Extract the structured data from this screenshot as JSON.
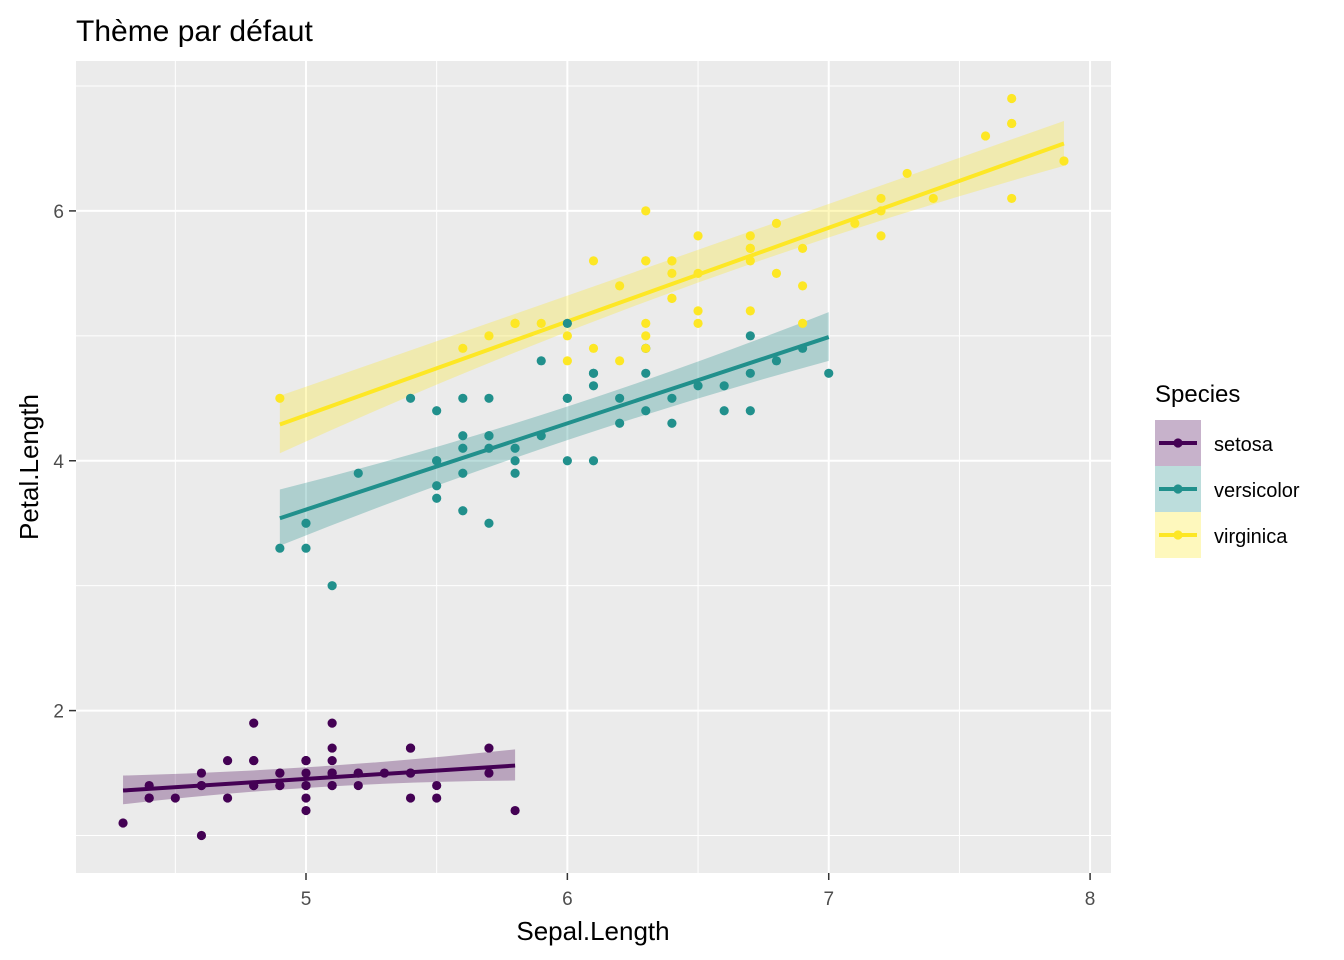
{
  "chart_data": {
    "type": "scatter",
    "title": "Thème par défaut",
    "xlabel": "Sepal.Length",
    "ylabel": "Petal.Length",
    "xlim": [
      4.12,
      8.08
    ],
    "ylim": [
      0.7,
      7.2
    ],
    "x_ticks": [
      5,
      6,
      7,
      8
    ],
    "y_ticks": [
      2,
      4,
      6
    ],
    "x_tick_labels": [
      "5",
      "6",
      "7",
      "8"
    ],
    "y_tick_labels": [
      "2",
      "4",
      "6"
    ],
    "grid": true,
    "background": "#ebebeb",
    "legend": {
      "title": "Species",
      "position": "right"
    },
    "series": [
      {
        "name": "setosa",
        "color": "#440154",
        "fit": {
          "x_range": [
            4.3,
            5.8
          ],
          "y_start": 1.36,
          "y_end": 1.56,
          "band_start": [
            1.25,
            1.48
          ],
          "band_end": [
            1.44,
            1.69
          ],
          "band_mid": [
            1.43,
            1.52
          ]
        },
        "points": [
          [
            5.1,
            1.4
          ],
          [
            4.9,
            1.4
          ],
          [
            4.7,
            1.3
          ],
          [
            4.6,
            1.5
          ],
          [
            5.0,
            1.4
          ],
          [
            5.4,
            1.7
          ],
          [
            4.6,
            1.4
          ],
          [
            5.0,
            1.5
          ],
          [
            4.4,
            1.4
          ],
          [
            4.9,
            1.5
          ],
          [
            5.4,
            1.5
          ],
          [
            4.8,
            1.6
          ],
          [
            4.8,
            1.4
          ],
          [
            4.3,
            1.1
          ],
          [
            5.8,
            1.2
          ],
          [
            5.7,
            1.5
          ],
          [
            5.4,
            1.3
          ],
          [
            5.1,
            1.4
          ],
          [
            5.7,
            1.7
          ],
          [
            5.1,
            1.5
          ],
          [
            5.4,
            1.7
          ],
          [
            5.1,
            1.5
          ],
          [
            4.6,
            1.0
          ],
          [
            5.1,
            1.7
          ],
          [
            4.8,
            1.9
          ],
          [
            5.0,
            1.6
          ],
          [
            5.0,
            1.6
          ],
          [
            5.2,
            1.5
          ],
          [
            5.2,
            1.4
          ],
          [
            4.7,
            1.6
          ],
          [
            4.8,
            1.6
          ],
          [
            5.4,
            1.5
          ],
          [
            5.2,
            1.5
          ],
          [
            5.5,
            1.4
          ],
          [
            4.9,
            1.5
          ],
          [
            5.0,
            1.2
          ],
          [
            5.5,
            1.3
          ],
          [
            4.9,
            1.4
          ],
          [
            4.4,
            1.3
          ],
          [
            5.1,
            1.5
          ],
          [
            5.0,
            1.3
          ],
          [
            4.5,
            1.3
          ],
          [
            4.4,
            1.3
          ],
          [
            5.0,
            1.6
          ],
          [
            5.1,
            1.9
          ],
          [
            4.8,
            1.4
          ],
          [
            5.1,
            1.6
          ],
          [
            4.6,
            1.4
          ],
          [
            5.3,
            1.5
          ],
          [
            5.0,
            1.4
          ]
        ]
      },
      {
        "name": "versicolor",
        "color": "#21908c",
        "fit": {
          "x_range": [
            4.9,
            7.0
          ],
          "y_start": 3.54,
          "y_end": 4.99,
          "band_start": [
            3.32,
            3.77
          ],
          "band_end": [
            4.8,
            5.19
          ],
          "band_mid": [
            4.2,
            4.32
          ]
        },
        "points": [
          [
            7.0,
            4.7
          ],
          [
            6.4,
            4.5
          ],
          [
            6.9,
            4.9
          ],
          [
            5.5,
            4.0
          ],
          [
            6.5,
            4.6
          ],
          [
            5.7,
            4.5
          ],
          [
            6.3,
            4.7
          ],
          [
            4.9,
            3.3
          ],
          [
            6.6,
            4.6
          ],
          [
            5.2,
            3.9
          ],
          [
            5.0,
            3.5
          ],
          [
            5.9,
            4.2
          ],
          [
            6.0,
            4.0
          ],
          [
            6.1,
            4.7
          ],
          [
            5.6,
            3.6
          ],
          [
            6.7,
            4.4
          ],
          [
            5.6,
            4.5
          ],
          [
            5.8,
            4.1
          ],
          [
            6.2,
            4.5
          ],
          [
            5.6,
            3.9
          ],
          [
            5.9,
            4.8
          ],
          [
            6.1,
            4.0
          ],
          [
            6.3,
            4.9
          ],
          [
            6.1,
            4.7
          ],
          [
            6.4,
            4.3
          ],
          [
            6.6,
            4.4
          ],
          [
            6.8,
            4.8
          ],
          [
            6.7,
            5.0
          ],
          [
            6.0,
            4.5
          ],
          [
            5.7,
            3.5
          ],
          [
            5.5,
            3.8
          ],
          [
            5.5,
            3.7
          ],
          [
            5.8,
            3.9
          ],
          [
            6.0,
            5.1
          ],
          [
            5.4,
            4.5
          ],
          [
            6.0,
            4.5
          ],
          [
            6.7,
            4.7
          ],
          [
            6.3,
            4.4
          ],
          [
            5.6,
            4.1
          ],
          [
            5.5,
            4.0
          ],
          [
            5.5,
            4.4
          ],
          [
            6.1,
            4.6
          ],
          [
            5.8,
            4.0
          ],
          [
            5.0,
            3.3
          ],
          [
            5.6,
            4.2
          ],
          [
            5.7,
            4.2
          ],
          [
            5.7,
            4.2
          ],
          [
            6.2,
            4.3
          ],
          [
            5.1,
            3.0
          ],
          [
            5.7,
            4.1
          ]
        ]
      },
      {
        "name": "virginica",
        "color": "#fde725",
        "fit": {
          "x_range": [
            4.9,
            7.9
          ],
          "y_start": 4.29,
          "y_end": 6.54,
          "band_start": [
            4.06,
            4.52
          ],
          "band_end": [
            6.36,
            6.72
          ],
          "band_mid": [
            5.49,
            5.61
          ]
        },
        "points": [
          [
            6.3,
            6.0
          ],
          [
            5.8,
            5.1
          ],
          [
            7.1,
            5.9
          ],
          [
            6.3,
            5.6
          ],
          [
            6.5,
            5.8
          ],
          [
            7.6,
            6.6
          ],
          [
            4.9,
            4.5
          ],
          [
            7.3,
            6.3
          ],
          [
            6.7,
            5.8
          ],
          [
            7.2,
            6.1
          ],
          [
            6.5,
            5.1
          ],
          [
            6.4,
            5.3
          ],
          [
            6.8,
            5.5
          ],
          [
            5.7,
            5.0
          ],
          [
            5.8,
            5.1
          ],
          [
            6.4,
            5.3
          ],
          [
            6.5,
            5.5
          ],
          [
            7.7,
            6.7
          ],
          [
            7.7,
            6.9
          ],
          [
            6.0,
            5.0
          ],
          [
            6.9,
            5.7
          ],
          [
            5.6,
            4.9
          ],
          [
            7.7,
            6.7
          ],
          [
            6.3,
            4.9
          ],
          [
            6.7,
            5.7
          ],
          [
            7.2,
            6.0
          ],
          [
            6.2,
            4.8
          ],
          [
            6.1,
            4.9
          ],
          [
            6.4,
            5.6
          ],
          [
            7.2,
            5.8
          ],
          [
            7.4,
            6.1
          ],
          [
            7.9,
            6.4
          ],
          [
            6.4,
            5.6
          ],
          [
            6.3,
            5.1
          ],
          [
            6.1,
            5.6
          ],
          [
            7.7,
            6.1
          ],
          [
            6.3,
            5.6
          ],
          [
            6.4,
            5.5
          ],
          [
            6.0,
            4.8
          ],
          [
            6.9,
            5.4
          ],
          [
            6.7,
            5.6
          ],
          [
            6.9,
            5.1
          ],
          [
            5.8,
            5.1
          ],
          [
            6.8,
            5.9
          ],
          [
            6.7,
            5.7
          ],
          [
            6.7,
            5.2
          ],
          [
            6.3,
            5.0
          ],
          [
            6.5,
            5.2
          ],
          [
            6.2,
            5.4
          ],
          [
            5.9,
            5.1
          ]
        ]
      }
    ]
  }
}
